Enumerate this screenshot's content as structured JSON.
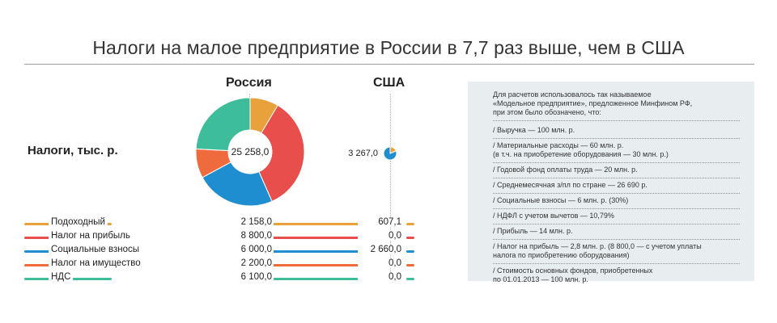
{
  "title": "Налоги на малое предприятие в России в 7,7 раз выше, чем в США",
  "headers": {
    "russia": "Россия",
    "usa": "США"
  },
  "row_label": "Налоги, тыс. р.",
  "chart_data": {
    "type": "pie",
    "title": "Налоги на малое предприятие в России в 7,7 раз выше, чем в США",
    "unit": "тыс. р.",
    "categories": [
      "Подоходный",
      "Налог на прибыль",
      "Социальные взносы",
      "Налог на имущество",
      "НДС"
    ],
    "series": [
      {
        "name": "Россия",
        "total_label": "25 258,0",
        "total": 25258.0,
        "values": [
          2158.0,
          8800.0,
          6000.0,
          2200.0,
          6100.0
        ],
        "value_labels": [
          "2 158,0",
          "8 800,0",
          "6 000,0",
          "2 200,0",
          "6 100,0"
        ]
      },
      {
        "name": "США",
        "total_label": "3 267,0",
        "total": 3267.0,
        "values": [
          607.1,
          0.0,
          2660.0,
          0.0,
          0.0
        ],
        "value_labels": [
          "607,1",
          "0,0",
          "2 660,0",
          "0,0",
          "0,0"
        ]
      }
    ],
    "colors": [
      "#e9a23b",
      "#e84e4c",
      "#1f8ed0",
      "#ef6a3c",
      "#3dbd9a"
    ]
  },
  "notes": {
    "intro": "Для расчетов использовалось так называемое\n«Модельное предприятие», предложенное Минфином РФ,\nпри этом было обозначено, что:",
    "items": [
      "/ Выручка — 100 млн. р.",
      "/ Материальные расходы — 60 млн. р.\n(в т.ч. на приобретение оборудования — 30 млн. р.)",
      "/ Годовой фонд оплаты труда — 20 млн. р.",
      "/ Среднемесячная з/пл по стране — 26 690 р.",
      "/ Социальные взносы — 6 млн. р. (30%)",
      "/ НДФЛ с учетом вычетов — 10,79%",
      "/ Прибыль — 14 млн. р.",
      "/ Налог на прибыль — 2,8 млн. р. (8 800,0 — с учетом уплаты\nналога по приобретению оборудования)",
      "/ Стоимость основных фондов, приобретенных\nпо 01.01.2013 — 100 млн. р."
    ]
  }
}
